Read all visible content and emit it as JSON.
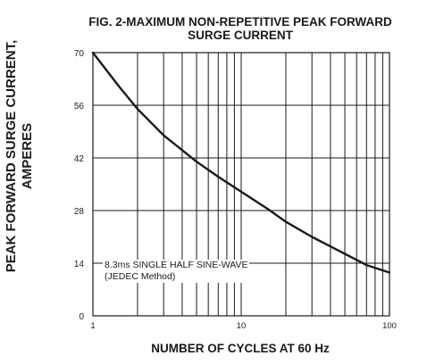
{
  "chart_data": {
    "type": "line",
    "title_line1": "FIG. 2-MAXIMUM NON-REPETITIVE PEAK FORWARD",
    "title_line2": "SURGE CURRENT",
    "xlabel": "NUMBER OF CYCLES AT 60 Hz",
    "ylabel_line1": "PEAK FORWARD SURGE CURRENT,",
    "ylabel_line2": "AMPERES",
    "xscale": "log",
    "xlim": [
      1,
      100
    ],
    "ylim": [
      0,
      70
    ],
    "grid": true,
    "x_tick_labels": [
      "1",
      "10",
      "100"
    ],
    "x_ticks": [
      1,
      10,
      100
    ],
    "y_ticks": [
      0,
      14,
      28,
      42,
      56,
      70
    ],
    "y_tick_labels": [
      "0",
      "14",
      "28",
      "42",
      "56",
      "70"
    ],
    "annotation_line1": "8.3ms SINGLE HALF SINE-WAVE",
    "annotation_line2": "(JEDEC Method)",
    "series": [
      {
        "color": "#1a1a1a",
        "x": [
          1,
          1.5,
          2,
          3,
          5,
          7,
          10,
          15,
          20,
          30,
          50,
          70,
          100
        ],
        "y": [
          70,
          61,
          55,
          48,
          41,
          37,
          33,
          28.5,
          25,
          21,
          16.5,
          13.5,
          11.5
        ]
      }
    ]
  }
}
